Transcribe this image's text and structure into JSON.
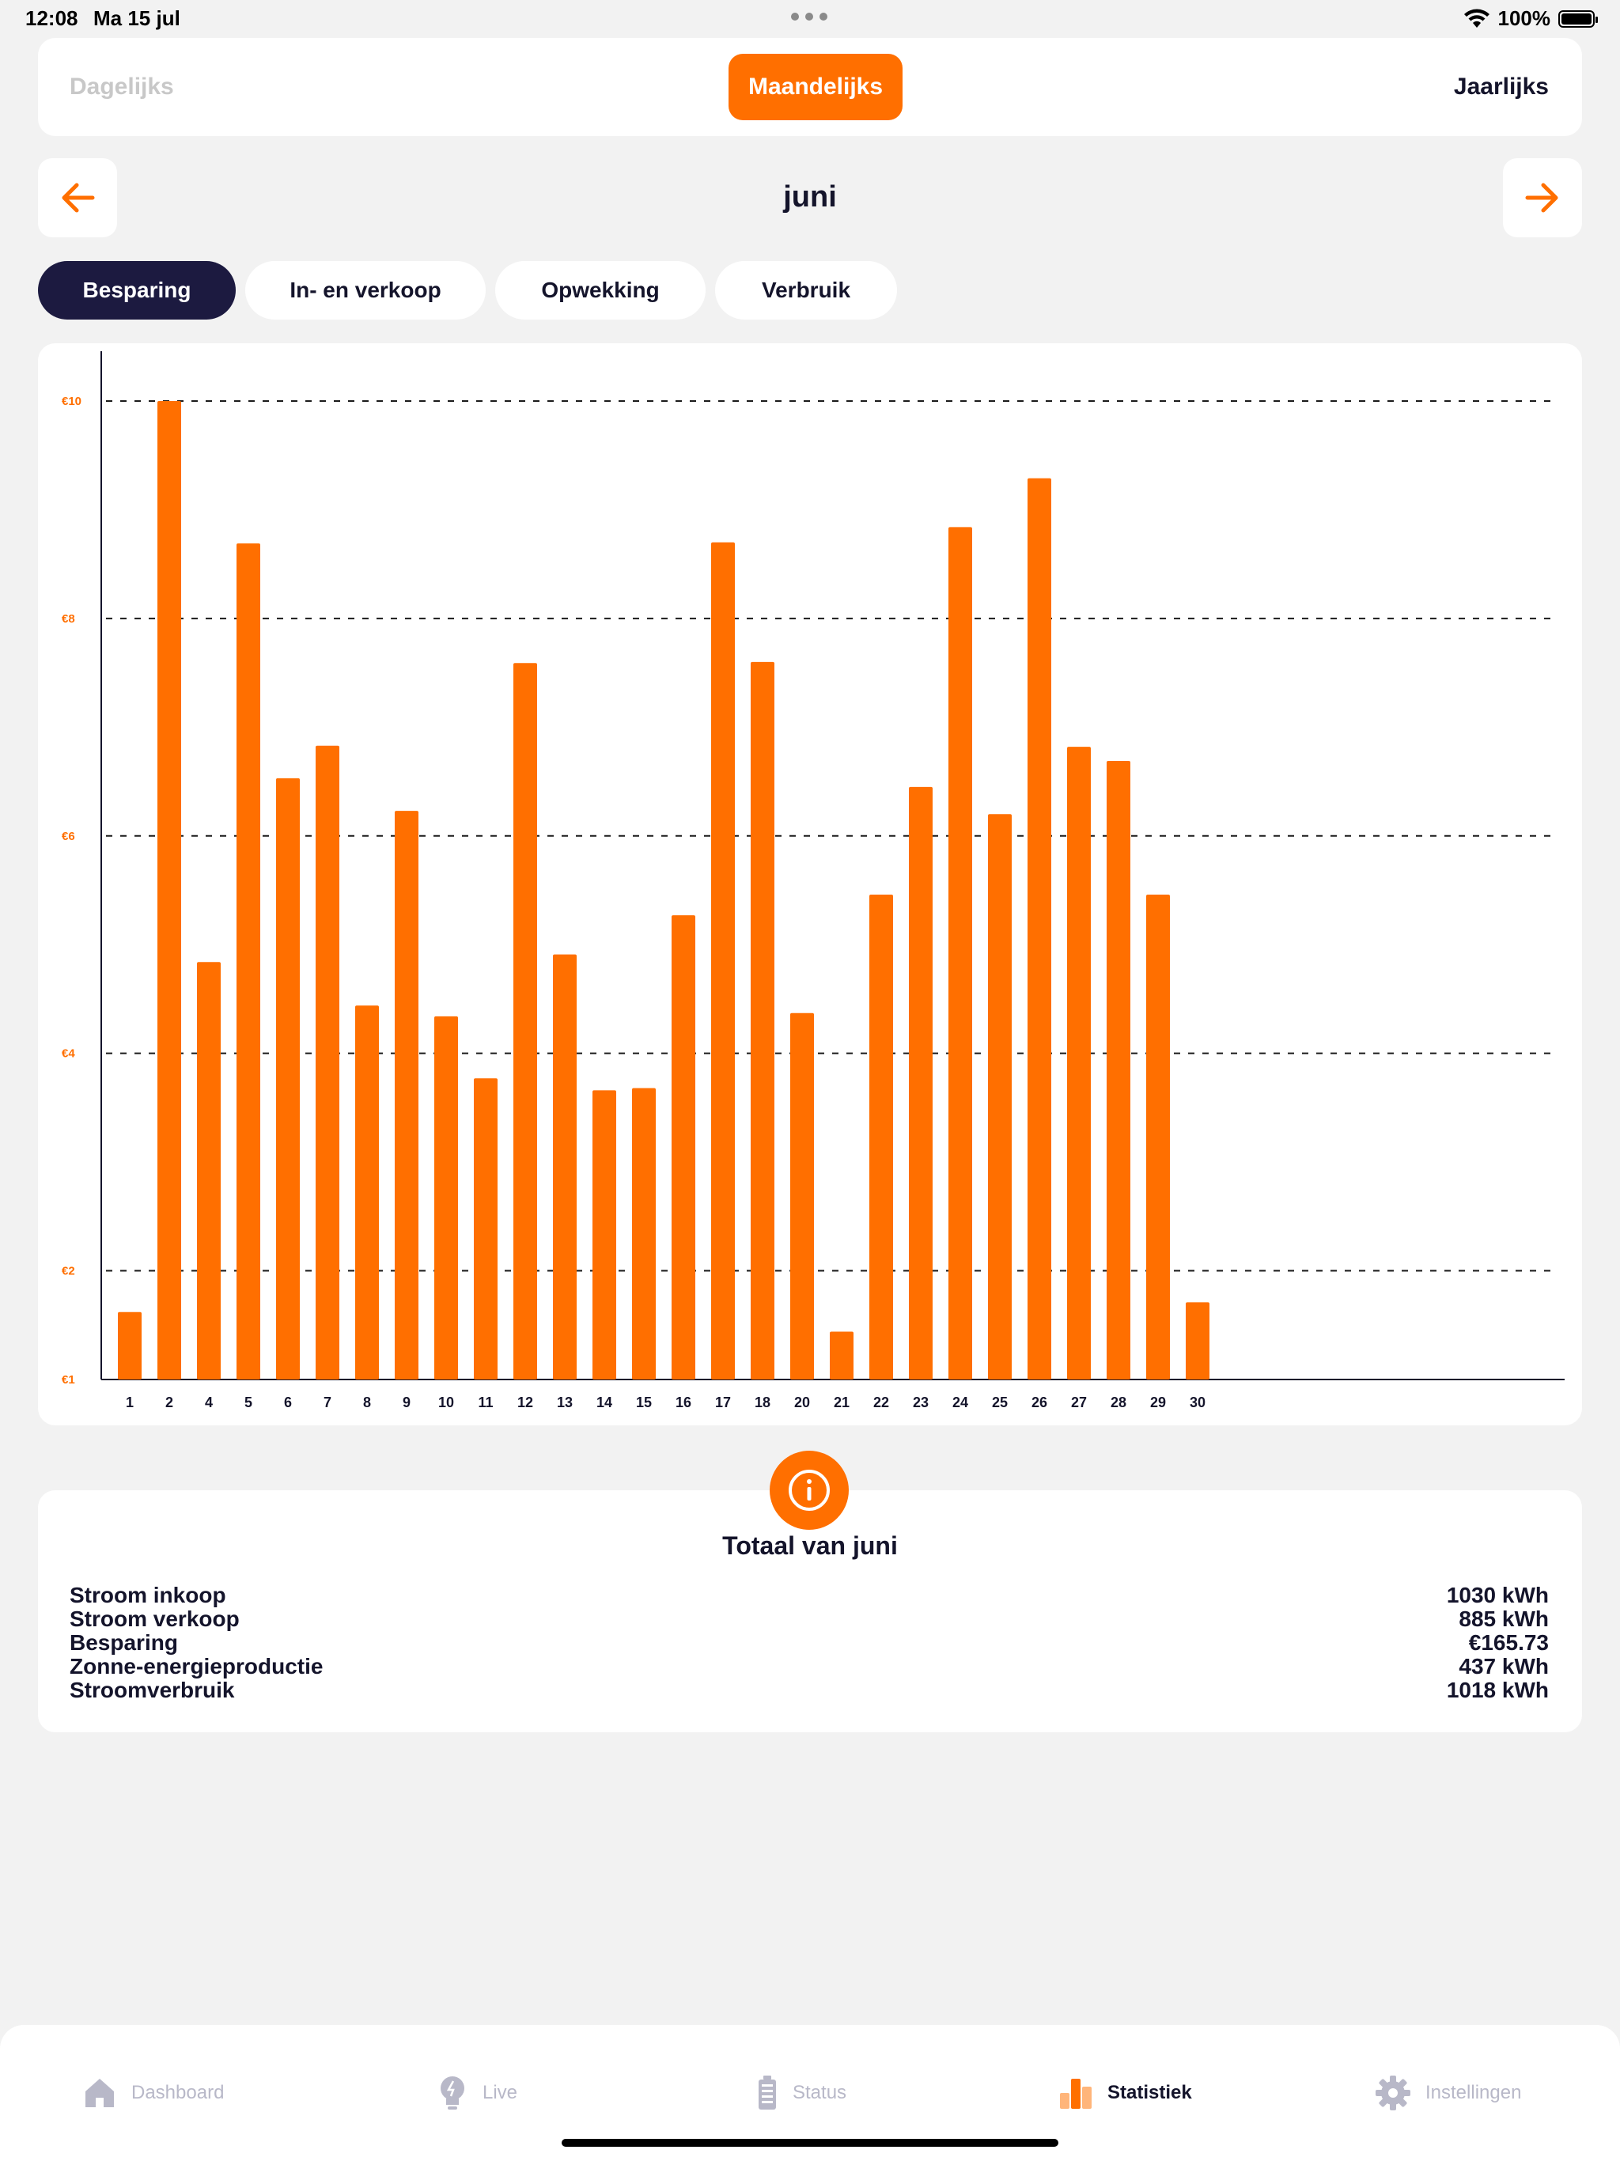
{
  "status_bar": {
    "time": "12:08",
    "date": "Ma 15 jul",
    "battery": "100%"
  },
  "period_selector": {
    "options": [
      "Dagelijks",
      "Maandelijks",
      "Jaarlijks"
    ],
    "selected": "Maandelijks"
  },
  "month_nav": {
    "title": "juni",
    "prev_icon": "arrow-left-icon",
    "next_icon": "arrow-right-icon"
  },
  "chart_tabs": {
    "items": [
      "Besparing",
      "In- en verkoop",
      "Opwekking",
      "Verbruik"
    ],
    "selected": "Besparing"
  },
  "chart_data": {
    "type": "bar",
    "categories": [
      "1",
      "2",
      "4",
      "5",
      "6",
      "7",
      "8",
      "9",
      "10",
      "11",
      "12",
      "13",
      "14",
      "15",
      "16",
      "17",
      "18",
      "20",
      "21",
      "22",
      "23",
      "24",
      "25",
      "26",
      "27",
      "28",
      "29",
      "30"
    ],
    "values": [
      1.62,
      10.0,
      4.84,
      8.69,
      6.53,
      6.83,
      4.44,
      6.23,
      4.34,
      3.77,
      7.59,
      4.91,
      3.66,
      3.68,
      5.27,
      8.7,
      7.6,
      4.37,
      1.44,
      5.46,
      6.45,
      8.84,
      6.2,
      9.29,
      6.82,
      6.69,
      5.46,
      1.71
    ],
    "ylim": [
      1,
      10.6
    ],
    "yticks": [
      1,
      2,
      4,
      6,
      8,
      10
    ],
    "ytick_labels": [
      "€1",
      "€2",
      "€4",
      "€6",
      "€8",
      "€10"
    ],
    "grid": true,
    "bar_color": "#ff6f00",
    "title": "",
    "xlabel": "",
    "ylabel": ""
  },
  "totals": {
    "title": "Totaal van juni",
    "rows": [
      {
        "label": "Stroom inkoop",
        "value": "1030 kWh"
      },
      {
        "label": "Stroom verkoop",
        "value": "885 kWh"
      },
      {
        "label": "Besparing",
        "value": "€165.73"
      },
      {
        "label": "Zonne-energieproductie",
        "value": "437 kWh"
      },
      {
        "label": "Stroomverbruik",
        "value": "1018 kWh"
      }
    ]
  },
  "tabbar": {
    "items": [
      {
        "label": "Dashboard",
        "icon": "house-icon"
      },
      {
        "label": "Live",
        "icon": "bulb-icon"
      },
      {
        "label": "Status",
        "icon": "battery-icon"
      },
      {
        "label": "Statistiek",
        "icon": "bar-chart-icon"
      },
      {
        "label": "Instellingen",
        "icon": "gear-icon"
      }
    ],
    "selected": "Statistiek"
  },
  "colors": {
    "accent": "#ff6f00",
    "dark": "#1c1a40",
    "background": "#f2f2f2",
    "inactive": "#b8b8c8"
  }
}
